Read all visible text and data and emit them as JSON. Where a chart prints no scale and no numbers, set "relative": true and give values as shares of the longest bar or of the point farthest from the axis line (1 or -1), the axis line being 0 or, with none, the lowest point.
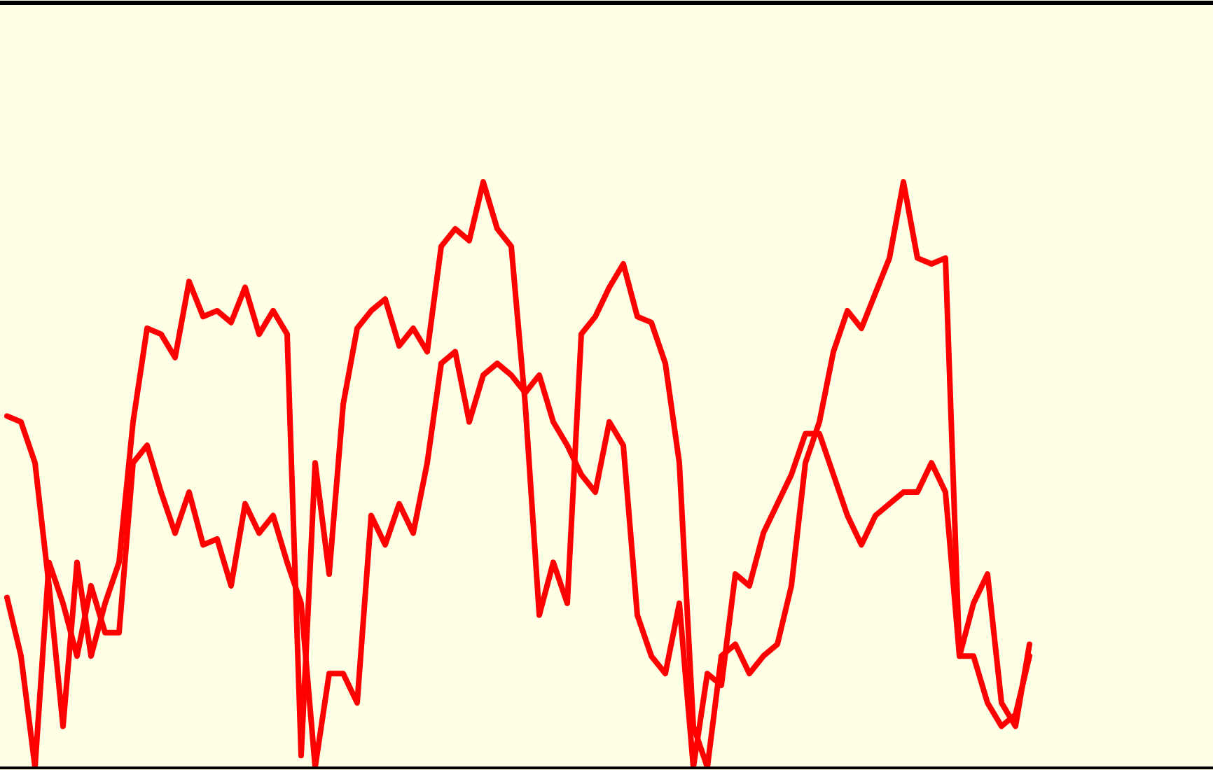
{
  "chart_data": {
    "type": "line",
    "relative": true,
    "categories": [
      null,
      null,
      null,
      null,
      null,
      null,
      null,
      null,
      null,
      null,
      null,
      null,
      null,
      null,
      null,
      null,
      null,
      null,
      null,
      null,
      null,
      null,
      null,
      null,
      null,
      null,
      null,
      null,
      null,
      null,
      null,
      null,
      null,
      null,
      null,
      null,
      null,
      null,
      null,
      null,
      null,
      null,
      null,
      null,
      null,
      null,
      null,
      null,
      null,
      null,
      null,
      null,
      null,
      null,
      null,
      null,
      null,
      null,
      null,
      null,
      null,
      null,
      null,
      null,
      null,
      null,
      null,
      null,
      null,
      null,
      null,
      null,
      null,
      null,
      null,
      null,
      null,
      null,
      null,
      null,
      null,
      null,
      null,
      null,
      null,
      null,
      null
    ],
    "series": [
      {
        "color": "#ff0000",
        "values": [
          0.6,
          0.59,
          0.52,
          0.31,
          0.07,
          0.35,
          0.19,
          0.28,
          0.35,
          0.59,
          0.75,
          0.74,
          0.7,
          0.83,
          0.77,
          0.78,
          0.76,
          0.82,
          0.74,
          0.78,
          0.74,
          0.02,
          0.52,
          0.33,
          0.62,
          0.75,
          0.78,
          0.8,
          0.72,
          0.75,
          0.71,
          0.89,
          0.92,
          0.9,
          1.0,
          0.92,
          0.89,
          0.62,
          0.26,
          0.35,
          0.28,
          0.74,
          0.77,
          0.82,
          0.86,
          0.77,
          0.76,
          0.69,
          0.52,
          0.07,
          0,
          0.19,
          0.21,
          0.16,
          0.19,
          0.21,
          0.31,
          0.52,
          0.59,
          0.71,
          0.78,
          0.75,
          0.81,
          0.87,
          1.0,
          0.87,
          0.86,
          0.87,
          0.19,
          0.28,
          0.33,
          0.11,
          0.07,
          0.21,
          null,
          null,
          null,
          null,
          null,
          null,
          null,
          null,
          null,
          null,
          null,
          null,
          null
        ]
      },
      {
        "color": "#ff0000",
        "values": [
          0.29,
          0.19,
          0,
          0.35,
          0.28,
          0.19,
          0.31,
          0.23,
          0.23,
          0.52,
          0.55,
          0.47,
          0.4,
          0.47,
          0.38,
          0.39,
          0.31,
          0.45,
          0.4,
          0.43,
          0.35,
          0.28,
          0,
          0.16,
          0.16,
          0.11,
          0.43,
          0.38,
          0.45,
          0.4,
          0.52,
          0.69,
          0.71,
          0.59,
          0.67,
          0.69,
          0.67,
          0.64,
          0.67,
          0.59,
          0.55,
          0.5,
          0.47,
          0.59,
          0.55,
          0.26,
          0.19,
          0.16,
          0.28,
          0,
          0.16,
          0.14,
          0.33,
          0.31,
          0.4,
          0.45,
          0.5,
          0.57,
          0.57,
          0.5,
          0.43,
          0.38,
          0.43,
          0.45,
          0.47,
          0.47,
          0.52,
          0.47,
          0.19,
          0.19,
          0.11,
          0.07,
          0.09,
          0.19,
          null,
          null,
          null,
          null,
          null,
          null,
          null,
          null,
          null,
          null,
          null,
          null,
          null
        ]
      }
    ]
  }
}
